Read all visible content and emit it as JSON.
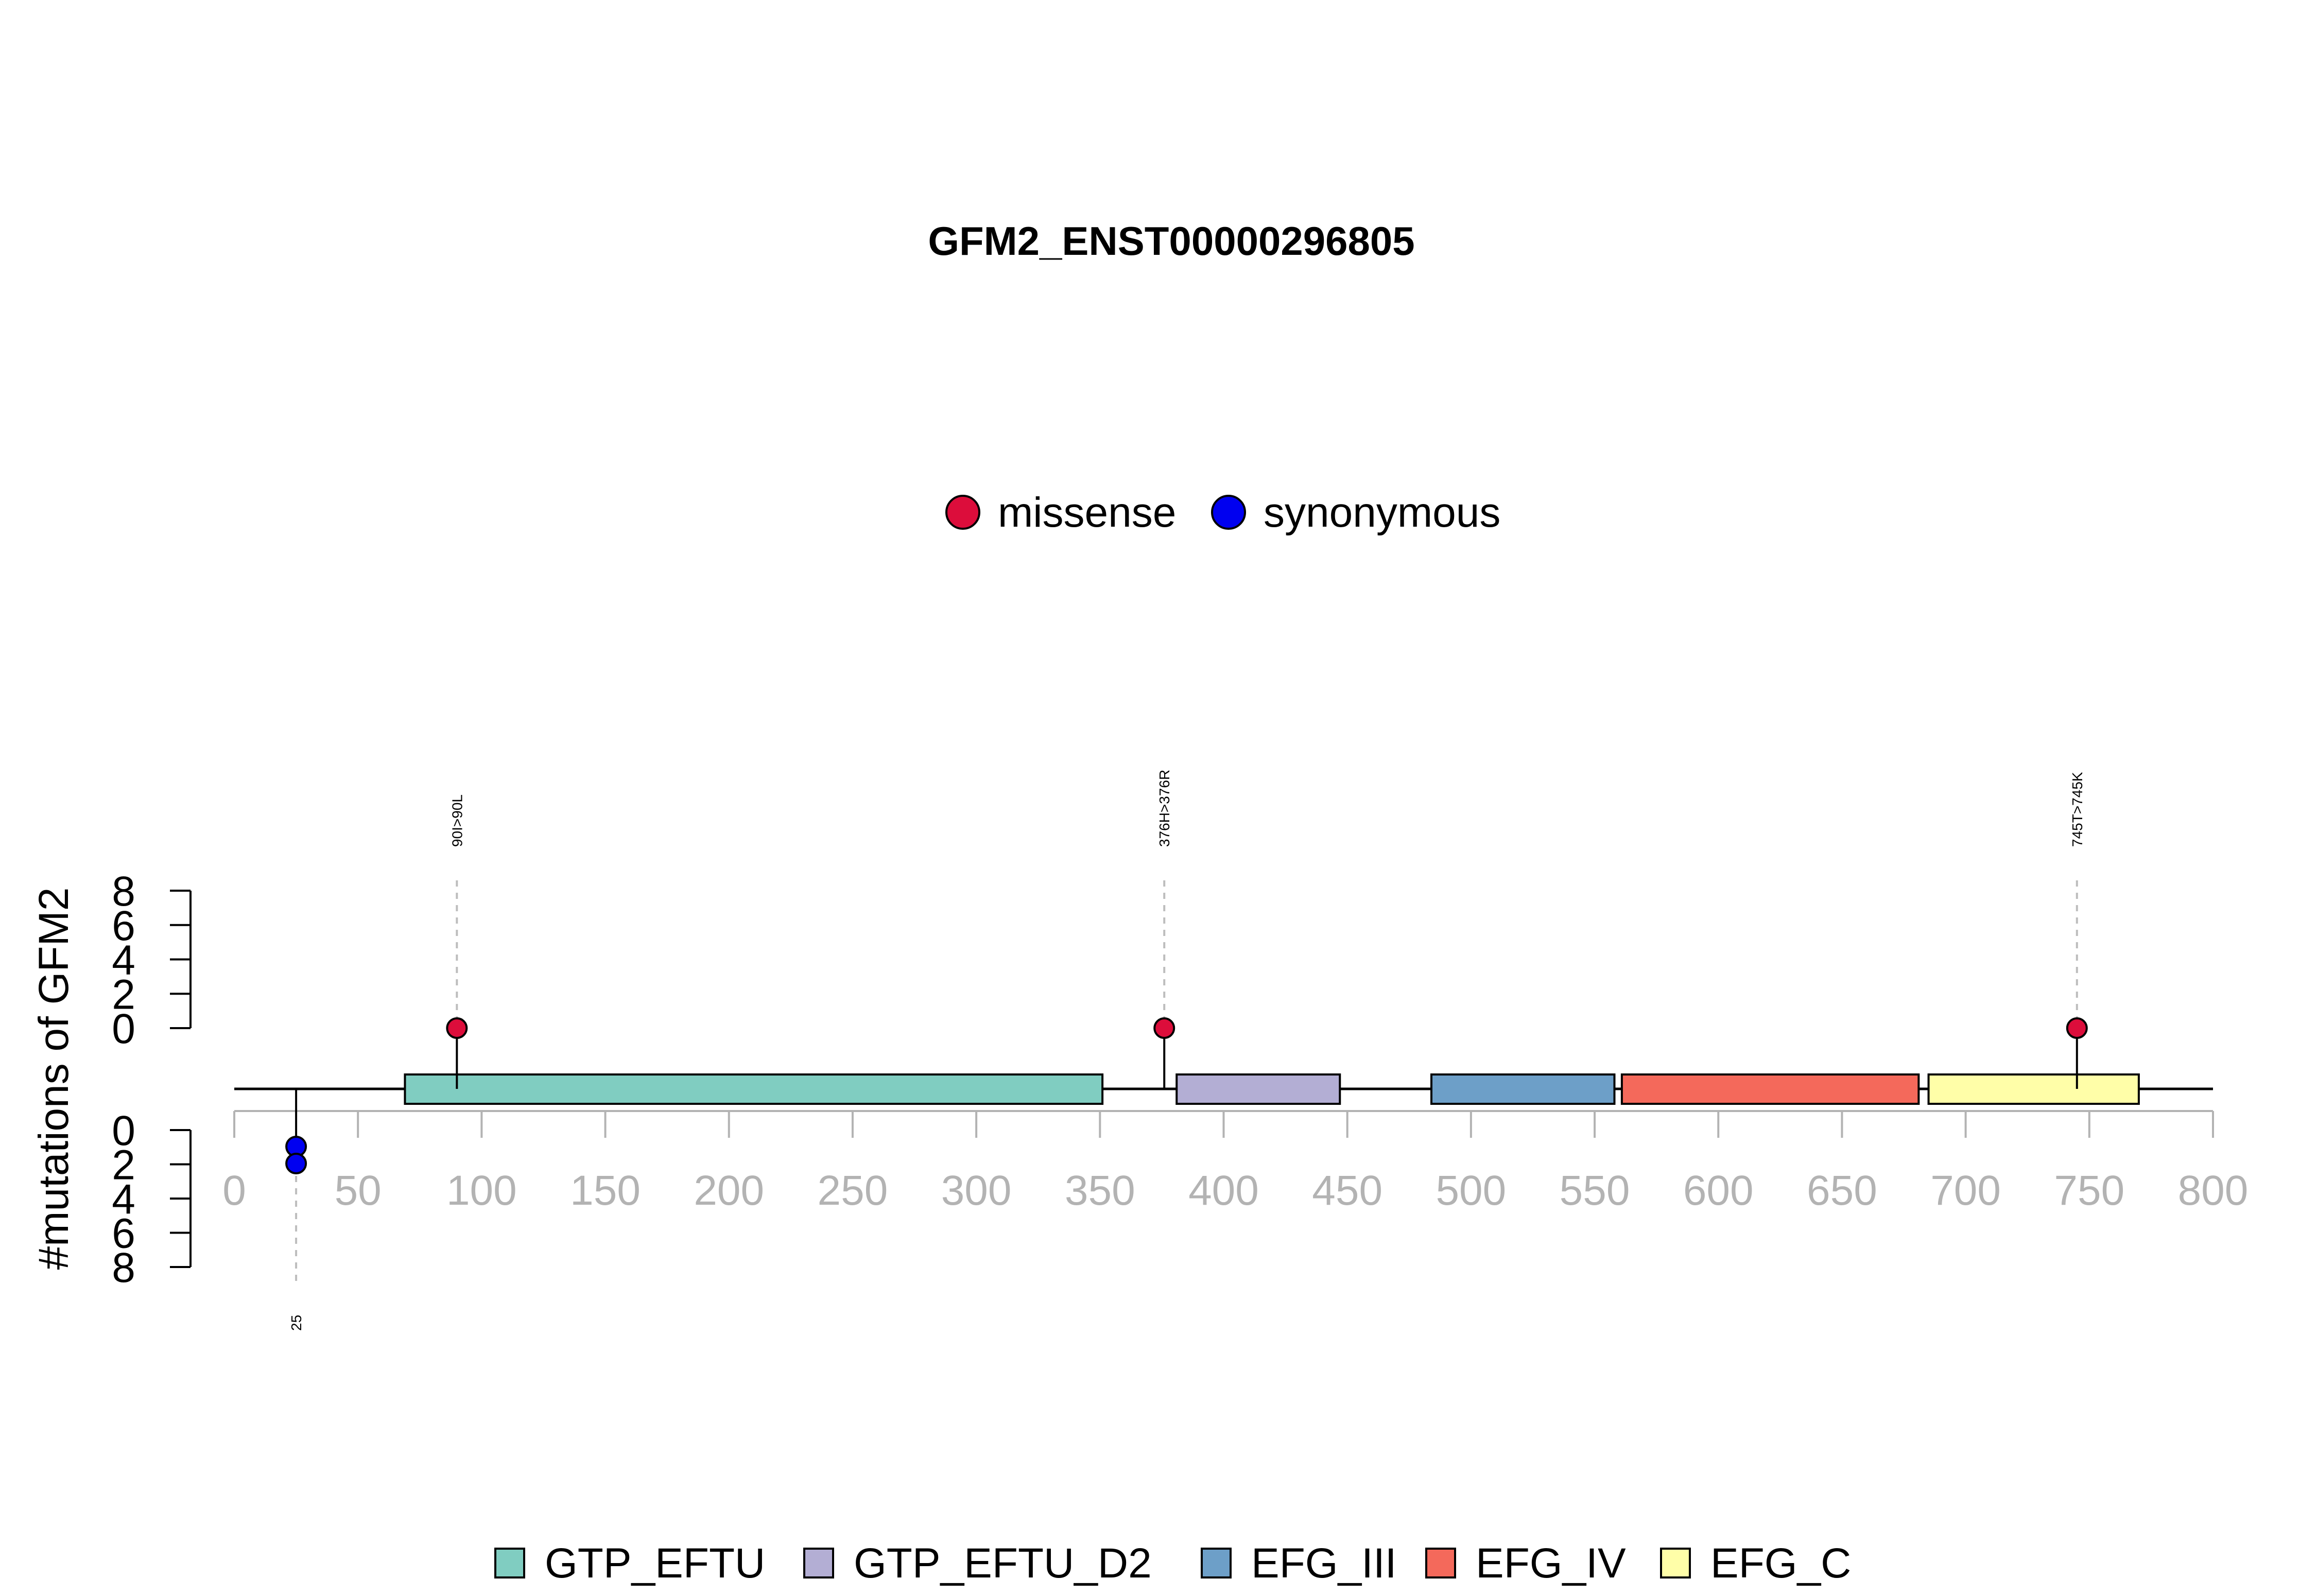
{
  "chart_data": {
    "type": "lollipop",
    "title": "GFM2_ENST00000296805",
    "ylabel": "#mutations of GFM2",
    "xlim": [
      0,
      800
    ],
    "x_ticks": [
      "0",
      "50",
      "100",
      "150",
      "200",
      "250",
      "300",
      "350",
      "400",
      "450",
      "500",
      "550",
      "600",
      "650",
      "700",
      "750",
      "800"
    ],
    "y_ticks_top": [
      "8",
      "6",
      "4",
      "2",
      "0"
    ],
    "y_ticks_bottom": [
      "0",
      "2",
      "4",
      "6",
      "8"
    ],
    "mutation_legend": [
      {
        "label": "missense",
        "color": "#dc0d3b"
      },
      {
        "label": "synonymous",
        "color": "#0000f0"
      }
    ],
    "domain_legend": [
      {
        "label": "GTP_EFTU",
        "color": "#80cdc1"
      },
      {
        "label": "GTP_EFTU_D2",
        "color": "#b3aed4"
      },
      {
        "label": "EFG_III",
        "color": "#6d9fc8"
      },
      {
        "label": "EFG_IV",
        "color": "#f4695b"
      },
      {
        "label": "EFG_C",
        "color": "#fffea8"
      }
    ],
    "domains": [
      {
        "name": "GTP_EFTU",
        "start": 69,
        "end": 351,
        "color": "#80cdc1"
      },
      {
        "name": "GTP_EFTU_D2",
        "start": 381,
        "end": 447,
        "color": "#b3aed4"
      },
      {
        "name": "EFG_III",
        "start": 484,
        "end": 558,
        "color": "#6d9fc8"
      },
      {
        "name": "EFG_IV",
        "start": 561,
        "end": 681,
        "color": "#f4695b"
      },
      {
        "name": "EFG_C",
        "start": 685,
        "end": 770,
        "color": "#fffea8"
      }
    ],
    "mutations_top": [
      {
        "position": 90,
        "count": 1,
        "type": "missense",
        "label": "90I>90L"
      },
      {
        "position": 376,
        "count": 1,
        "type": "missense",
        "label": "376H>376R"
      },
      {
        "position": 745,
        "count": 1,
        "type": "missense",
        "label": "745T>745K"
      }
    ],
    "mutations_bottom": [
      {
        "position": 25,
        "count": 2,
        "type": "synonymous",
        "label": "25"
      }
    ]
  }
}
